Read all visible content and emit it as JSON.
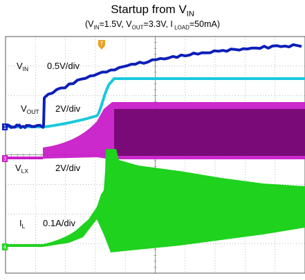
{
  "title": {
    "text": "Startup from V",
    "sub": "IN"
  },
  "subtitle": {
    "open": "(V",
    "vin_sub": "IN",
    "vin_value": "=1.5V, V",
    "vout_sub": "OUT",
    "vout_value": "=3.3V, I",
    "iload_sub": " LOAD",
    "iload_value": "=50mA)"
  },
  "traces": {
    "vin": {
      "name": "V",
      "sub": "IN",
      "scale": "0.5V/div",
      "color": "#0d1fb8"
    },
    "vout": {
      "name": "V",
      "sub": "OUT",
      "scale": "2V/div",
      "color": "#19c8dc"
    },
    "vlx": {
      "name": "V",
      "sub": "LX",
      "scale": "2V/div",
      "color": "#c81ec8"
    },
    "il": {
      "name": "I",
      "sub": "L",
      "scale": "0.1A/div",
      "color": "#1ed21e"
    }
  },
  "markers": {
    "ch1": "1",
    "ch3": "3",
    "ch4": "4",
    "trigger": "T"
  },
  "chart_data": {
    "type": "line",
    "grid": true,
    "x_divisions": 10,
    "y_divisions": 8,
    "series": [
      {
        "name": "VIN",
        "values": [
          0,
          0,
          0,
          0,
          0.74,
          0.86,
          1.0,
          1.1,
          1.2,
          1.28,
          1.36,
          1.42,
          1.46,
          1.5
        ]
      },
      {
        "name": "VOUT",
        "values": [
          0,
          0,
          0,
          0,
          0.75,
          1.1,
          1.6,
          2.6,
          3.3,
          3.3,
          3.3,
          3.3,
          3.3,
          3.3
        ]
      },
      {
        "name": "VLX",
        "values": [
          0,
          0,
          0,
          0,
          0.8,
          1.4,
          2.2,
          3.3,
          3.6,
          3.6,
          3.6,
          3.6,
          3.6,
          3.6
        ]
      },
      {
        "name": "IL",
        "values": [
          0,
          0,
          0,
          0,
          0.02,
          0.05,
          0.09,
          0.18,
          0.42,
          0.36,
          0.33,
          0.3,
          0.27,
          0.25
        ]
      }
    ]
  }
}
